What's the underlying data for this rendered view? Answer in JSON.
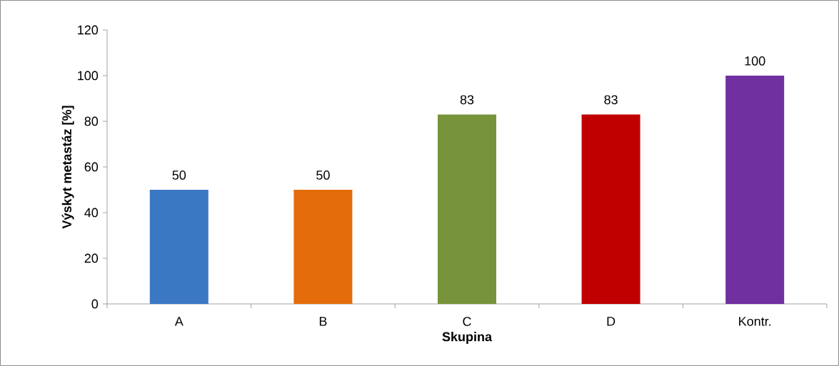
{
  "chart_data": {
    "type": "bar",
    "xlabel": "Skupina",
    "ylabel": "Výskyt metastáz [%]",
    "categories": [
      "A",
      "B",
      "C",
      "D",
      "Kontr."
    ],
    "values": [
      50,
      50,
      83,
      83,
      100
    ],
    "colors": [
      "#3a78c3",
      "#e46c0a",
      "#77933c",
      "#c00000",
      "#7030a0"
    ],
    "ylim": [
      0,
      120
    ],
    "yticks": [
      0,
      20,
      40,
      60,
      80,
      100,
      120
    ],
    "data_labels": true
  }
}
